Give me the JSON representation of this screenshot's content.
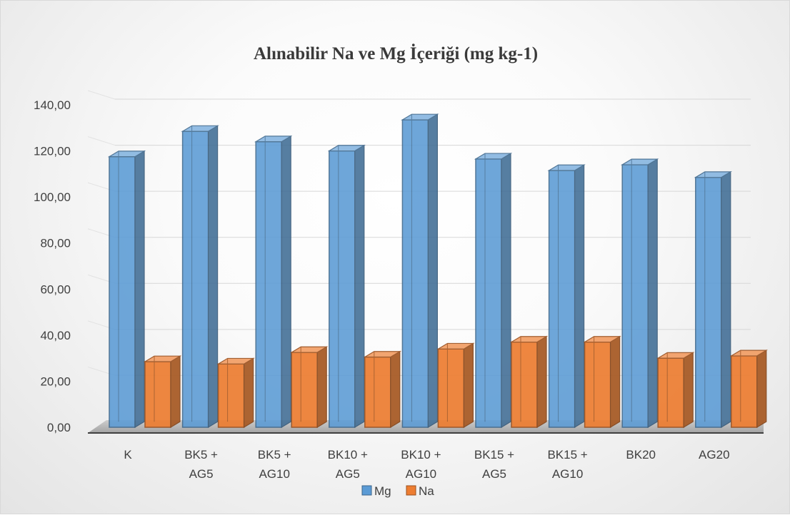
{
  "chart_data": {
    "type": "bar",
    "title": "Alınabilir Na ve Mg İçeriği (mg kg-1)",
    "categories": [
      "K",
      "BK5 + AG5",
      "BK5 + AG10",
      "BK10 + AG5",
      "BK10 + AG10",
      "BK15 + AG5",
      "BK15 + AG10",
      "BK20",
      "AG20"
    ],
    "category_lines": [
      [
        "K"
      ],
      [
        "BK5 +",
        "AG5"
      ],
      [
        "BK5 +",
        "AG10"
      ],
      [
        "BK10 +",
        "AG5"
      ],
      [
        "BK10 +",
        "AG10"
      ],
      [
        "BK15 +",
        "AG5"
      ],
      [
        "BK15 +",
        "AG10"
      ],
      [
        "BK20"
      ],
      [
        "AG20"
      ]
    ],
    "series": [
      {
        "name": "Mg",
        "color": "#5B9BD5",
        "values": [
          117.5,
          128.5,
          124.0,
          120.0,
          133.5,
          116.5,
          111.5,
          114.0,
          108.5
        ]
      },
      {
        "name": "Na",
        "color": "#ED7D31",
        "values": [
          28.5,
          27.5,
          32.5,
          30.5,
          34.0,
          37.0,
          37.0,
          30.0,
          31.0
        ]
      }
    ],
    "y_ticks": [
      "0,00",
      "20,00",
      "40,00",
      "60,00",
      "80,00",
      "100,00",
      "120,00",
      "140,00"
    ],
    "ylim": [
      0,
      140
    ],
    "grid": true,
    "legend_position": "bottom",
    "is_3d": true
  }
}
